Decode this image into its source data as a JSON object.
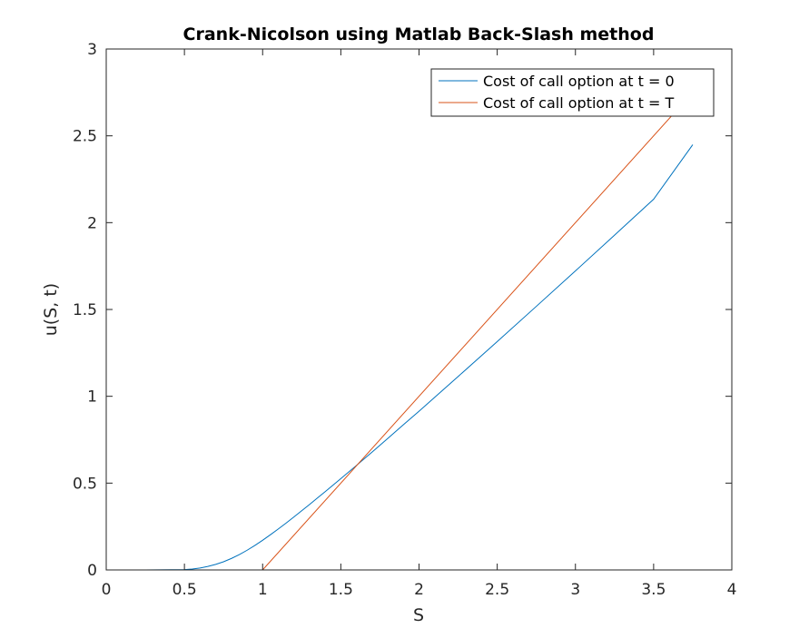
{
  "chart_data": {
    "type": "line",
    "title": "Crank-Nicolson using Matlab Back-Slash method",
    "xlabel": "S",
    "ylabel": "u(S, t)",
    "xlim": [
      0,
      4
    ],
    "ylim": [
      0,
      3
    ],
    "xticks": [
      "0",
      "0.5",
      "1",
      "1.5",
      "2",
      "2.5",
      "3",
      "3.5",
      "4"
    ],
    "yticks": [
      "0",
      "0.5",
      "1",
      "1.5",
      "2",
      "2.5",
      "3"
    ],
    "grid": false,
    "legend_position": "top-right",
    "series": [
      {
        "name": "Cost of call option at t = 0",
        "color": "#0072BD",
        "x": [
          0,
          0.25,
          0.5,
          0.55,
          0.6,
          0.65,
          0.7,
          0.75,
          0.8,
          0.85,
          0.9,
          0.95,
          1.0,
          1.05,
          1.1,
          1.15,
          1.2,
          1.25,
          1.3,
          1.35,
          1.4,
          1.5,
          1.6,
          1.7,
          1.8,
          1.9,
          2.0,
          2.25,
          2.5,
          2.75,
          3.0,
          3.25,
          3.5,
          3.75
        ],
        "y": [
          0,
          0,
          0.002,
          0.005,
          0.011,
          0.02,
          0.032,
          0.047,
          0.066,
          0.088,
          0.113,
          0.141,
          0.171,
          0.203,
          0.236,
          0.27,
          0.305,
          0.341,
          0.377,
          0.414,
          0.451,
          0.526,
          0.602,
          0.679,
          0.757,
          0.836,
          0.914,
          1.114,
          1.315,
          1.518,
          1.722,
          1.928,
          2.135,
          2.449
        ]
      },
      {
        "name": "Cost of call option at t = T",
        "color": "#D95319",
        "x": [
          0,
          1.0,
          3.75
        ],
        "y": [
          0,
          0,
          2.75
        ]
      }
    ]
  }
}
